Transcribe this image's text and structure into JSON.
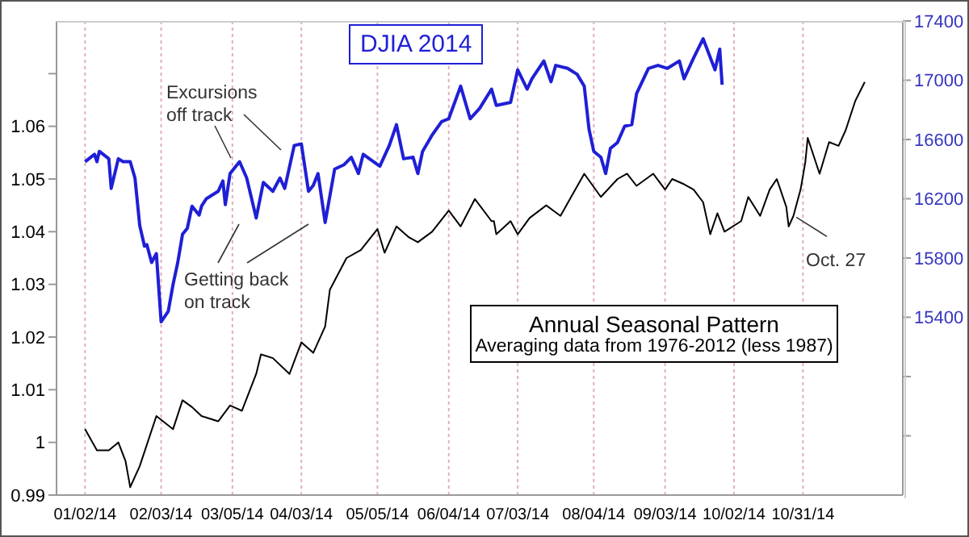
{
  "chart_data": {
    "type": "line",
    "title": "DJIA 2014",
    "xlim": [
      "2013-12-21",
      "2014-12-12"
    ],
    "xticks": [
      {
        "value": "2014-01-02",
        "label": "01/02/14"
      },
      {
        "value": "2014-02-03",
        "label": "02/03/14"
      },
      {
        "value": "2014-03-05",
        "label": "03/05/14"
      },
      {
        "value": "2014-04-03",
        "label": "04/03/14"
      },
      {
        "value": "2014-05-05",
        "label": "05/05/14"
      },
      {
        "value": "2014-06-04",
        "label": "06/04/14"
      },
      {
        "value": "2014-07-03",
        "label": "07/03/14"
      },
      {
        "value": "2014-08-04",
        "label": "08/04/14"
      },
      {
        "value": "2014-09-03",
        "label": "09/03/14"
      },
      {
        "value": "2014-10-02",
        "label": "10/02/14"
      },
      {
        "value": "2014-10-31",
        "label": "10/31/14"
      }
    ],
    "ylim": [
      0.99,
      1.08
    ],
    "yticks": [
      0.99,
      1.0,
      1.01,
      1.02,
      1.03,
      1.04,
      1.05,
      1.06,
      {
        "value": 1.07,
        "label": null
      }
    ],
    "y2lim": [
      14200,
      17400
    ],
    "y2ticks": [
      {
        "value": 14600,
        "label": null
      },
      {
        "value": 15000,
        "label": null
      },
      15400,
      15800,
      16200,
      16600,
      17000,
      17400
    ],
    "grid": "x",
    "marker": "none",
    "line_style": "solid",
    "annotations": [
      "Averaging data from 1976-2012 (less 1987)",
      "Excursions off track",
      "Getting back on track",
      {
        "text": "Oct. 27",
        "x": "2014-10-27",
        "y": 1.043
      }
    ],
    "series": [
      {
        "color": "#1f1fd6",
        "axis": "y2",
        "x": [
          "2014-01-02",
          "2014-01-06",
          "2014-01-07",
          "2014-01-08",
          "2014-01-12",
          "2014-01-13",
          "2014-01-16",
          "2014-01-18",
          "2014-01-21",
          "2014-01-23",
          "2014-01-25",
          "2014-01-27",
          "2014-01-28",
          "2014-01-30",
          "2014-02-01",
          "2014-02-03",
          "2014-02-06",
          "2014-02-08",
          "2014-02-10",
          "2014-02-12",
          "2014-02-14",
          "2014-02-16",
          "2014-02-19",
          "2014-02-20",
          "2014-02-22",
          "2014-02-27",
          "2014-03-01",
          "2014-03-02",
          "2014-03-04",
          "2014-03-08",
          "2014-03-11",
          "2014-03-15",
          "2014-03-18",
          "2014-03-22",
          "2014-03-25",
          "2014-03-27",
          "2014-03-31",
          "2014-04-03",
          "2014-04-06",
          "2014-04-08",
          "2014-04-10",
          "2014-04-13",
          "2014-04-17",
          "2014-04-21",
          "2014-04-24",
          "2014-04-27",
          "2014-04-29",
          "2014-05-06",
          "2014-05-10",
          "2014-05-13",
          "2014-05-16",
          "2014-05-20",
          "2014-05-22",
          "2014-05-24",
          "2014-05-28",
          "2014-06-01",
          "2014-06-04",
          "2014-06-09",
          "2014-06-13",
          "2014-06-17",
          "2014-06-22",
          "2014-06-24",
          "2014-06-30",
          "2014-07-03",
          "2014-07-07",
          "2014-07-09",
          "2014-07-14",
          "2014-07-17",
          "2014-07-19",
          "2014-07-24",
          "2014-07-28",
          "2014-07-31",
          "2014-08-02",
          "2014-08-04",
          "2014-08-07",
          "2014-08-09",
          "2014-08-11",
          "2014-08-14",
          "2014-08-17",
          "2014-08-20",
          "2014-08-22",
          "2014-08-27",
          "2014-08-31",
          "2014-09-04",
          "2014-09-09",
          "2014-09-11",
          "2014-09-15",
          "2014-09-19",
          "2014-09-24",
          "2014-09-26",
          "2014-09-27"
        ],
        "values": [
          16450,
          16500,
          16450,
          16520,
          16470,
          16270,
          16470,
          16450,
          16450,
          16340,
          16020,
          15880,
          15890,
          15770,
          15830,
          15370,
          15440,
          15620,
          15770,
          15960,
          16000,
          16150,
          16090,
          16150,
          16200,
          16250,
          16320,
          16160,
          16370,
          16450,
          16340,
          16070,
          16310,
          16250,
          16340,
          16270,
          16560,
          16570,
          16250,
          16290,
          16370,
          16040,
          16400,
          16430,
          16480,
          16370,
          16500,
          16420,
          16560,
          16700,
          16470,
          16480,
          16370,
          16520,
          16630,
          16720,
          16740,
          16960,
          16740,
          16810,
          16940,
          16830,
          16850,
          17070,
          16940,
          17010,
          17130,
          16990,
          17100,
          17080,
          17040,
          16960,
          16670,
          16520,
          16480,
          16370,
          16540,
          16580,
          16690,
          16700,
          16910,
          17080,
          17100,
          17080,
          17130,
          17010,
          17150,
          17280,
          17070,
          17210,
          16970
        ]
      },
      {
        "name": "Annual Seasonal Pattern",
        "color": "#000000",
        "x": [
          "2014-01-02",
          "2014-01-07",
          "2014-01-12",
          "2014-01-16",
          "2014-01-19",
          "2014-01-21",
          "2014-01-25",
          "2014-02-01",
          "2014-02-08",
          "2014-02-12",
          "2014-02-16",
          "2014-02-20",
          "2014-02-27",
          "2014-03-04",
          "2014-03-09",
          "2014-03-15",
          "2014-03-17",
          "2014-03-22",
          "2014-03-29",
          "2014-04-03",
          "2014-04-08",
          "2014-04-13",
          "2014-04-15",
          "2014-04-22",
          "2014-04-28",
          "2014-05-05",
          "2014-05-08",
          "2014-05-13",
          "2014-05-18",
          "2014-05-22",
          "2014-05-28",
          "2014-06-04",
          "2014-06-09",
          "2014-06-15",
          "2014-06-22",
          "2014-06-23",
          "2014-06-24",
          "2014-06-30",
          "2014-07-03",
          "2014-07-08",
          "2014-07-15",
          "2014-07-21",
          "2014-07-25",
          "2014-07-31",
          "2014-08-07",
          "2014-08-14",
          "2014-08-18",
          "2014-08-22",
          "2014-08-29",
          "2014-09-03",
          "2014-09-06",
          "2014-09-11",
          "2014-09-15",
          "2014-09-19",
          "2014-09-22",
          "2014-09-25",
          "2014-09-28",
          "2014-10-05",
          "2014-10-08",
          "2014-10-13",
          "2014-10-17",
          "2014-10-20",
          "2014-10-24",
          "2014-10-25",
          "2014-10-27",
          "2014-10-30",
          "2014-11-01",
          "2014-11-02",
          "2014-11-07",
          "2014-11-11",
          "2014-11-15",
          "2014-11-18",
          "2014-11-22",
          "2014-11-26"
        ],
        "values": [
          1.0025,
          0.9985,
          0.9985,
          1.0,
          0.9965,
          0.9915,
          0.9955,
          1.005,
          1.0025,
          1.008,
          1.0067,
          1.005,
          1.004,
          1.007,
          1.006,
          1.013,
          1.0167,
          1.016,
          1.013,
          1.019,
          1.017,
          1.022,
          1.029,
          1.035,
          1.0365,
          1.0405,
          1.036,
          1.041,
          1.039,
          1.038,
          1.04,
          1.044,
          1.041,
          1.0462,
          1.042,
          1.042,
          1.0395,
          1.042,
          1.0395,
          1.0426,
          1.045,
          1.043,
          1.0462,
          1.051,
          1.0466,
          1.05,
          1.051,
          1.0487,
          1.051,
          1.048,
          1.05,
          1.049,
          1.048,
          1.0456,
          1.0395,
          1.0435,
          1.04,
          1.042,
          1.0466,
          1.043,
          1.048,
          1.05,
          1.0447,
          1.041,
          1.043,
          1.048,
          1.0532,
          1.0578,
          1.051,
          1.057,
          1.0563,
          1.0593,
          1.0648,
          1.0684
        ]
      }
    ]
  }
}
